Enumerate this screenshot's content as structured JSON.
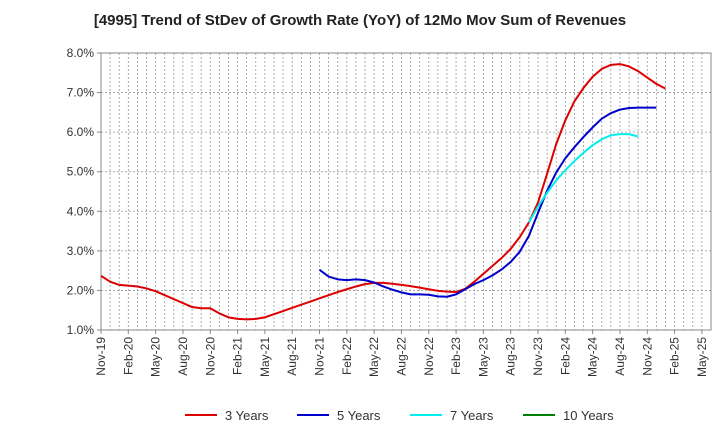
{
  "chart_data": {
    "type": "line",
    "title": "[4995]  Trend of StDev of Growth Rate (YoY) of 12Mo Mov Sum of Revenues",
    "xlabel": "",
    "ylabel": "",
    "ylim": [
      1.0,
      8.0
    ],
    "yticks": [
      "1.0%",
      "2.0%",
      "3.0%",
      "4.0%",
      "5.0%",
      "6.0%",
      "7.0%",
      "8.0%"
    ],
    "xtick_labels": [
      "Nov-19",
      "Feb-20",
      "May-20",
      "Aug-20",
      "Nov-20",
      "Feb-21",
      "May-21",
      "Aug-21",
      "Nov-21",
      "Feb-22",
      "May-22",
      "Aug-22",
      "Nov-22",
      "Feb-23",
      "May-23",
      "Aug-23",
      "Nov-23",
      "Feb-24",
      "May-24",
      "Aug-24",
      "Nov-24",
      "Feb-25",
      "May-25"
    ],
    "x_start": "Nov-19",
    "n_months": 67,
    "grid": true,
    "legend_position": "bottom",
    "series": [
      {
        "name": "3 Years",
        "color": "#dd0000",
        "start_month": 0,
        "values": [
          2.37,
          2.22,
          2.14,
          2.12,
          2.1,
          2.05,
          1.98,
          1.88,
          1.78,
          1.68,
          1.58,
          1.55,
          1.55,
          1.42,
          1.32,
          1.28,
          1.27,
          1.28,
          1.32,
          1.4,
          1.48,
          1.56,
          1.64,
          1.72,
          1.8,
          1.88,
          1.96,
          2.03,
          2.1,
          2.16,
          2.19,
          2.19,
          2.17,
          2.14,
          2.11,
          2.07,
          2.03,
          1.99,
          1.97,
          1.96,
          2.04,
          2.22,
          2.42,
          2.62,
          2.82,
          3.05,
          3.35,
          3.72,
          4.22,
          4.95,
          5.7,
          6.3,
          6.78,
          7.12,
          7.4,
          7.6,
          7.7,
          7.72,
          7.66,
          7.54,
          7.38,
          7.22,
          7.1
        ]
      },
      {
        "name": "5 Years",
        "color": "#0000cc",
        "start_month": 24,
        "values": [
          2.52,
          2.35,
          2.28,
          2.26,
          2.28,
          2.26,
          2.2,
          2.1,
          2.02,
          1.95,
          1.9,
          1.9,
          1.89,
          1.85,
          1.84,
          1.9,
          2.03,
          2.16,
          2.26,
          2.38,
          2.53,
          2.72,
          2.98,
          3.38,
          3.96,
          4.52,
          4.98,
          5.34,
          5.62,
          5.88,
          6.12,
          6.34,
          6.48,
          6.57,
          6.61,
          6.62,
          6.62,
          6.62
        ]
      },
      {
        "name": "7 Years",
        "color": "#00eeee",
        "start_month": 47,
        "values": [
          3.72,
          4.12,
          4.47,
          4.78,
          5.04,
          5.27,
          5.48,
          5.67,
          5.82,
          5.92,
          5.95,
          5.95,
          5.89
        ]
      },
      {
        "name": "10 Years",
        "color": "#008000",
        "start_month": 67,
        "values": []
      }
    ]
  }
}
